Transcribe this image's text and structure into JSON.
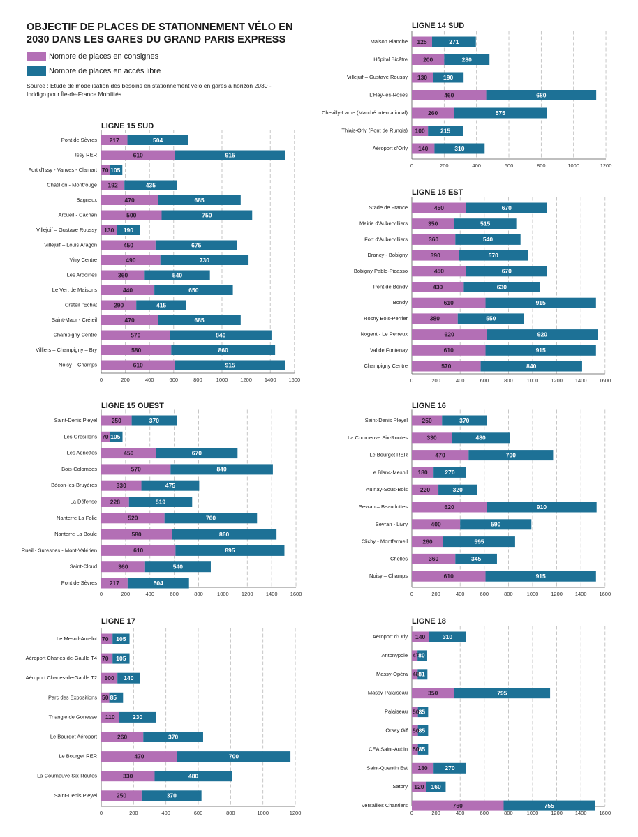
{
  "header": {
    "title": "OBJECTIF DE PLACES DE STATIONNEMENT VÉLO EN 2030 DANS LES GARES DU GRAND PARIS EXPRESS",
    "legend": [
      {
        "label": "Nombre de places en consignes",
        "color": "#b36fb5"
      },
      {
        "label": "Nombre de places en accès libre",
        "color": "#1d7196"
      }
    ],
    "source": "Source : Etude de modélisation des besoins en stationnement vélo en gares à horizon 2030 - Inddigo pour Île-de-France Mobilités"
  },
  "colors": {
    "consignes": "#b36fb5",
    "acces_libre": "#1d7196",
    "grid": "#b9b9b9",
    "axis": "#555555"
  },
  "chart_data": [
    {
      "type": "bar",
      "orientation": "horizontal",
      "stacked": true,
      "title": "LIGNE 15 SUD",
      "categories": [
        "Pont de Sèvres",
        "Issy RER",
        "Fort d'Issy - Vanves - Clamart",
        "Châtillon - Montrouge",
        "Bagneux",
        "Arcueil - Cachan",
        "Villejuif – Gustave Roussy",
        "Villejuif – Louis Aragon",
        "Vitry Centre",
        "Les Ardoines",
        "Le Vert de Maisons",
        "Créteil l'Echat",
        "Saint-Maur - Créteil",
        "Champigny Centre",
        "Villiers – Champigny – Bry",
        "Noisy – Champs"
      ],
      "series": [
        {
          "name": "Nombre de places en consignes",
          "values": [
            217,
            610,
            70,
            192,
            470,
            500,
            130,
            450,
            490,
            360,
            440,
            290,
            470,
            570,
            580,
            610
          ]
        },
        {
          "name": "Nombre de places en accès libre",
          "values": [
            504,
            915,
            105,
            435,
            685,
            750,
            190,
            675,
            730,
            540,
            650,
            415,
            685,
            840,
            860,
            915
          ]
        }
      ],
      "xticks": [
        0,
        200,
        400,
        600,
        800,
        1000,
        1200,
        1400,
        1600
      ],
      "xlim": [
        0,
        1600
      ],
      "grid": true
    },
    {
      "type": "bar",
      "orientation": "horizontal",
      "stacked": true,
      "title": "LIGNE 14 SUD",
      "categories": [
        "Maison Blanche",
        "Hôpital Bicêtre",
        "Villejuif – Gustave Roussy",
        "L'Haÿ-les-Roses",
        "Chevilly-Larue (Marché international)",
        "Thiais-Orly (Pont de Rungis)",
        "Aéroport d'Orly"
      ],
      "series": [
        {
          "name": "Nombre de places en consignes",
          "values": [
            125,
            200,
            130,
            460,
            260,
            100,
            140
          ]
        },
        {
          "name": "Nombre de places en accès libre",
          "values": [
            271,
            280,
            190,
            680,
            575,
            215,
            310
          ]
        }
      ],
      "xticks": [
        0,
        200,
        400,
        600,
        800,
        1000,
        1200
      ],
      "xlim": [
        0,
        1200
      ],
      "grid": true
    },
    {
      "type": "bar",
      "orientation": "horizontal",
      "stacked": true,
      "title": "LIGNE 15 EST",
      "categories": [
        "Stade de France",
        "Mairie d'Aubervilliers",
        "Fort d'Aubervilliers",
        "Drancy - Bobigny",
        "Bobigny Pablo-Picasso",
        "Pont de Bondy",
        "Bondy",
        "Rosny Bois-Perrier",
        "Nogent - Le Perreux",
        "Val de Fontenay",
        "Champigny Centre"
      ],
      "series": [
        {
          "name": "Nombre de places en consignes",
          "values": [
            450,
            350,
            360,
            390,
            450,
            430,
            610,
            380,
            620,
            610,
            570
          ]
        },
        {
          "name": "Nombre de places en accès libre",
          "values": [
            670,
            515,
            540,
            570,
            670,
            630,
            915,
            550,
            920,
            915,
            840
          ]
        }
      ],
      "xticks": [
        0,
        200,
        400,
        600,
        800,
        1000,
        1200,
        1400,
        1600
      ],
      "xlim": [
        0,
        1600
      ],
      "grid": true
    },
    {
      "type": "bar",
      "orientation": "horizontal",
      "stacked": true,
      "title": "LIGNE 15 OUEST",
      "categories": [
        "Saint-Denis Pleyel",
        "Les Grésillons",
        "Les Agnettes",
        "Bois-Colombes",
        "Bécon-les-Bruyères",
        "La Défense",
        "Nanterre La Folie",
        "Nanterre La Boule",
        "Rueil - Suresnes - Mont-Valérien",
        "Saint-Cloud",
        "Pont de Sèvres"
      ],
      "series": [
        {
          "name": "Nombre de places en consignes",
          "values": [
            250,
            70,
            450,
            570,
            330,
            228,
            520,
            580,
            610,
            360,
            217
          ]
        },
        {
          "name": "Nombre de places en accès libre",
          "values": [
            370,
            105,
            670,
            840,
            475,
            519,
            760,
            860,
            895,
            540,
            504
          ]
        }
      ],
      "xticks": [
        0,
        200,
        400,
        600,
        800,
        1000,
        1200,
        1400,
        1600
      ],
      "xlim": [
        0,
        1600
      ],
      "grid": true
    },
    {
      "type": "bar",
      "orientation": "horizontal",
      "stacked": true,
      "title": "LIGNE 16",
      "categories": [
        "Saint-Denis Pleyel",
        "La Courneuve Six-Routes",
        "Le Bourget RER",
        "Le Blanc-Mesnil",
        "Aulnay-Sous-Bois",
        "Sevran – Beaudottes",
        "Sevran - Livry",
        "Clichy - Montfermeil",
        "Chelles",
        "Noisy – Champs"
      ],
      "series": [
        {
          "name": "Nombre de places en consignes",
          "values": [
            250,
            330,
            470,
            180,
            220,
            620,
            400,
            260,
            360,
            610
          ]
        },
        {
          "name": "Nombre de places en accès libre",
          "values": [
            370,
            480,
            700,
            270,
            320,
            910,
            590,
            595,
            345,
            915
          ]
        }
      ],
      "xticks": [
        0,
        200,
        400,
        600,
        800,
        1000,
        1200,
        1400,
        1600
      ],
      "xlim": [
        0,
        1600
      ],
      "grid": true
    },
    {
      "type": "bar",
      "orientation": "horizontal",
      "stacked": true,
      "title": "LIGNE 17",
      "categories": [
        "Le Mesnil-Amelot",
        "Aéroport Charles-de-Gaulle T4",
        "Aéroport Charles-de-Gaulle T2",
        "Parc des Expositions",
        "Triangle de Gonesse",
        "Le Bourget Aéroport",
        "Le Bourget RER",
        "La Courneuve Six-Routes",
        "Saint-Denis Pleyel"
      ],
      "series": [
        {
          "name": "Nombre de places en consignes",
          "values": [
            70,
            70,
            100,
            50,
            110,
            260,
            470,
            330,
            250
          ]
        },
        {
          "name": "Nombre de places en accès libre",
          "values": [
            105,
            105,
            140,
            85,
            230,
            370,
            700,
            480,
            370
          ]
        }
      ],
      "xticks": [
        0,
        200,
        400,
        600,
        800,
        1000,
        1200
      ],
      "xlim": [
        0,
        1200
      ],
      "grid": true
    },
    {
      "type": "bar",
      "orientation": "horizontal",
      "stacked": true,
      "title": "LIGNE 18",
      "categories": [
        "Aéroport d'Orly",
        "Antonypole",
        "Massy-Opéra",
        "Massy-Palaiseau",
        "Palaiseau",
        "Orsay Gif",
        "CEA Saint-Aubin",
        "Saint-Quentin Est",
        "Satory",
        "Versailles Chantiers"
      ],
      "series": [
        {
          "name": "Nombre de places en consignes",
          "values": [
            140,
            47,
            48,
            350,
            50,
            50,
            50,
            180,
            120,
            760
          ]
        },
        {
          "name": "Nombre de places en accès libre",
          "values": [
            310,
            80,
            81,
            795,
            85,
            85,
            85,
            270,
            160,
            755
          ]
        }
      ],
      "xticks": [
        0,
        200,
        400,
        600,
        800,
        1000,
        1200,
        1400,
        1600
      ],
      "xlim": [
        0,
        1600
      ],
      "grid": true
    }
  ]
}
